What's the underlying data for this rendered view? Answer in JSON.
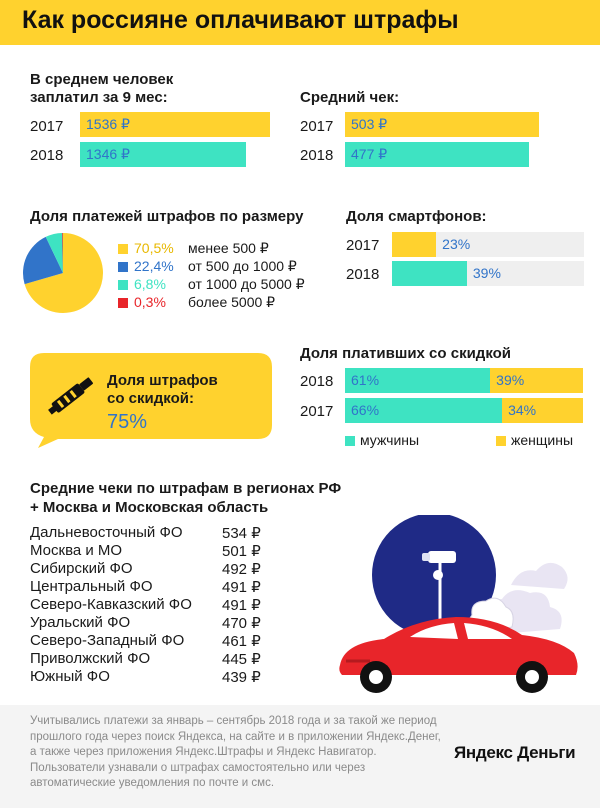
{
  "title": "Как россияне оплачивают штрафы",
  "avg_paid": {
    "title": "В среднем человек заплатил за 9 мес:",
    "rows": [
      {
        "year": "2017",
        "label": "1536 ₽",
        "value": 1536,
        "color": "#ffd22e"
      },
      {
        "year": "2018",
        "label": "1346 ₽",
        "value": 1346,
        "color": "#3ee3c2"
      }
    ]
  },
  "avg_check": {
    "title": "Средний чек:",
    "rows": [
      {
        "year": "2017",
        "label": "503 ₽",
        "value": 503,
        "color": "#ffd22e"
      },
      {
        "year": "2018",
        "label": "477 ₽",
        "value": 477,
        "color": "#3ee3c2"
      }
    ]
  },
  "size_share": {
    "title": "Доля платежей штрафов по размеру",
    "items": [
      {
        "percent": "70,5%",
        "category": "менее 500 ₽",
        "value": 70.5,
        "color": "#ffd22e"
      },
      {
        "percent": "22,4%",
        "category": "от 500 до 1000 ₽",
        "value": 22.4,
        "color": "#3174c9"
      },
      {
        "percent": "6,8%",
        "category": "от 1000 до 5000 ₽",
        "value": 6.8,
        "color": "#3ee3c2"
      },
      {
        "percent": "0,3%",
        "category": "более 5000 ₽",
        "value": 0.3,
        "color": "#e8252a"
      }
    ]
  },
  "smartphones": {
    "title": "Доля смартфонов:",
    "rows": [
      {
        "year": "2017",
        "label": "23%",
        "value": 23,
        "color": "#ffd22e"
      },
      {
        "year": "2018",
        "label": "39%",
        "value": 39,
        "color": "#3ee3c2"
      }
    ]
  },
  "discount_callout": {
    "line1": "Доля штрафов",
    "line2": "со скидкой:",
    "value": "75%"
  },
  "discount_gender": {
    "title": "Доля плативших со скидкой",
    "rows": [
      {
        "year": "2018",
        "men_label": "61%",
        "men": 61,
        "women_label": "39%",
        "women": 39
      },
      {
        "year": "2017",
        "men_label": "66%",
        "men": 66,
        "women_label": "34%",
        "women": 34
      }
    ],
    "legend_men": "мужчины",
    "legend_women": "женщины",
    "men_color": "#3ee3c2",
    "women_color": "#ffd22e"
  },
  "regions": {
    "title_line1": "Средние чеки по штрафам в регионах РФ",
    "title_line2": "+ Москва и Московская область",
    "rows": [
      {
        "region": "Дальневосточный ФО",
        "value": "534 ₽"
      },
      {
        "region": "Москва и МО",
        "value": "501 ₽"
      },
      {
        "region": "Сибирский ФО",
        "value": "492 ₽"
      },
      {
        "region": "Центральный ФО",
        "value": "491 ₽"
      },
      {
        "region": "Северо-Кавказский ФО",
        "value": "491 ₽"
      },
      {
        "region": "Уральский ФО",
        "value": "470 ₽"
      },
      {
        "region": "Северо-Западный ФО",
        "value": "461 ₽"
      },
      {
        "region": "Приволжский ФО",
        "value": "445 ₽"
      },
      {
        "region": "Южный ФО",
        "value": "439 ₽"
      }
    ]
  },
  "footnote": "Учитывались платежи за январь – сентябрь 2018 года и за такой же период прошлого года через поиск Яндекса, на сайте и в приложении Яндекс.Денег, а также через приложения Яндекс.Штрафы и Яндекс Навигатор. Пользователи узнавали о штрафах самостоятельно или через автоматические уведомления по почте и смс.",
  "logo": "Яндекс Деньги",
  "chart_data": [
    {
      "type": "bar",
      "title": "В среднем человек заплатил за 9 мес:",
      "categories": [
        "2017",
        "2018"
      ],
      "values": [
        1536,
        1346
      ],
      "unit": "₽"
    },
    {
      "type": "bar",
      "title": "Средний чек:",
      "categories": [
        "2017",
        "2018"
      ],
      "values": [
        503,
        477
      ],
      "unit": "₽"
    },
    {
      "type": "pie",
      "title": "Доля платежей штрафов по размеру",
      "categories": [
        "менее 500 ₽",
        "от 500 до 1000 ₽",
        "от 1000 до 5000 ₽",
        "более 5000 ₽"
      ],
      "values": [
        70.5,
        22.4,
        6.8,
        0.3
      ]
    },
    {
      "type": "bar",
      "title": "Доля смартфонов:",
      "categories": [
        "2017",
        "2018"
      ],
      "values": [
        23,
        39
      ],
      "ylim": [
        0,
        100
      ]
    },
    {
      "type": "bar",
      "title": "Доля плативших со скидкой",
      "categories": [
        "2018",
        "2017"
      ],
      "series": [
        {
          "name": "мужчины",
          "values": [
            61,
            66
          ]
        },
        {
          "name": "женщины",
          "values": [
            39,
            34
          ]
        }
      ],
      "stacked": true
    },
    {
      "type": "table",
      "title": "Средние чеки по штрафам в регионах РФ + Москва и Московская область",
      "categories": [
        "Дальневосточный ФО",
        "Москва и МО",
        "Сибирский ФО",
        "Центральный ФО",
        "Северо-Кавказский ФО",
        "Уральский ФО",
        "Северо-Западный ФО",
        "Приволжский ФО",
        "Южный ФО"
      ],
      "values": [
        534,
        501,
        492,
        491,
        491,
        470,
        461,
        445,
        439
      ]
    }
  ]
}
